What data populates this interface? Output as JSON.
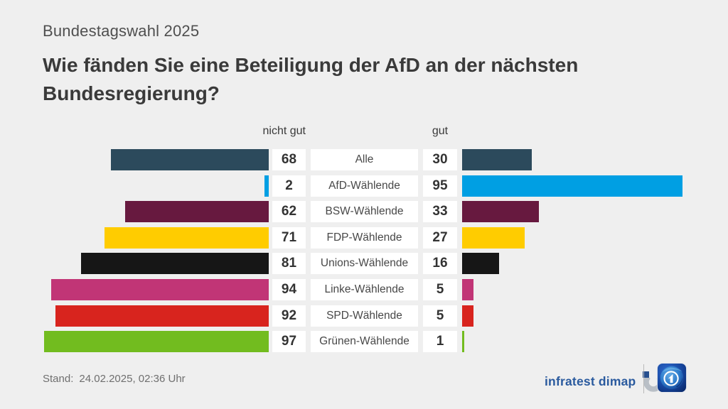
{
  "meta": {
    "background": "#efefef"
  },
  "header": {
    "kicker": "Bundestagswahl 2025",
    "title_lines": [
      "Wie fänden Sie eine Beteiligung der AfD an der nächsten",
      "Bundesregierung?"
    ]
  },
  "chart_data": {
    "type": "bar",
    "variant": "diverging-horizontal",
    "title": "Wie fänden Sie eine Beteiligung der AfD an der nächsten Bundesregierung?",
    "left_header": "nicht gut",
    "right_header": "gut",
    "xlim": [
      0,
      100
    ],
    "unit": "percent",
    "categories": [
      "Alle",
      "AfD-Wählende",
      "BSW-Wählende",
      "FDP-Wählende",
      "Unions-Wählende",
      "Linke-Wählende",
      "SPD-Wählende",
      "Grünen-Wählende"
    ],
    "series": [
      {
        "name": "nicht gut",
        "values": [
          68,
          2,
          62,
          71,
          81,
          94,
          92,
          97
        ]
      },
      {
        "name": "gut",
        "values": [
          30,
          95,
          33,
          27,
          16,
          5,
          5,
          1
        ]
      }
    ],
    "bar_colors": [
      "#2c4a5c",
      "#009fe3",
      "#67193f",
      "#ffcc00",
      "#161616",
      "#c13576",
      "#d8241e",
      "#72bc1f"
    ],
    "grid": false,
    "legend": false
  },
  "footer": {
    "stand_label": "Stand:",
    "stand_value": "24.02.2025, 02:36 Uhr",
    "brand": "infratest dimap",
    "brand_color": "#2a5a9e"
  },
  "icons": {
    "infratest_dimap_logo": "infratest-dimap-logo",
    "ard_logo": "ard-logo"
  }
}
